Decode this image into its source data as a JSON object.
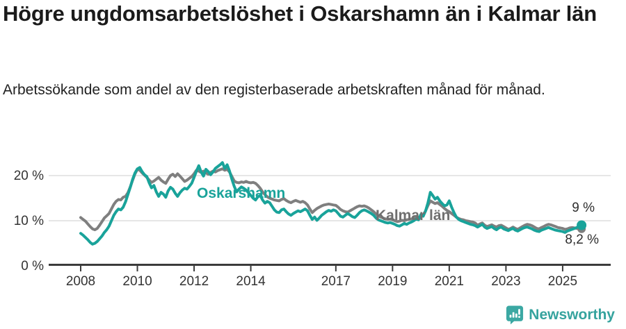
{
  "header": {
    "title": "Högre ungdomsarbetslöshet i Oskarshamn än i Kalmar län",
    "subtitle": "Arbetssökande som andel av den registerbaserade arbetskraften månad för månad."
  },
  "chart_data": {
    "type": "line",
    "unit": "%",
    "x_start_year": 2008,
    "x_step_months": 1,
    "x_end_label": "sep 2025",
    "grid": "horizontal",
    "ylim": [
      0,
      25
    ],
    "y_ticks": [
      {
        "value": 0,
        "label": "0 %"
      },
      {
        "value": 10,
        "label": "10 %"
      },
      {
        "value": 20,
        "label": "20 %"
      }
    ],
    "x_ticks": [
      {
        "year": 2008,
        "label": "2008"
      },
      {
        "year": 2010,
        "label": "2010"
      },
      {
        "year": 2012,
        "label": "2012"
      },
      {
        "year": 2014,
        "label": "2014"
      },
      {
        "year": 2017,
        "label": "2017"
      },
      {
        "year": 2019,
        "label": "2019"
      },
      {
        "year": 2021,
        "label": "2021"
      },
      {
        "year": 2023,
        "label": "2023"
      },
      {
        "year": 2025,
        "label": "2025"
      }
    ],
    "series": [
      {
        "name": "Kalmar län",
        "color": "#7f7f7f",
        "label_color": "#6f6f6f",
        "end_label": "8,2 %",
        "final_value": 8.2,
        "values": [
          10.7,
          10.3,
          9.9,
          9.3,
          8.7,
          8.2,
          8.0,
          8.3,
          9.0,
          9.8,
          10.6,
          11.1,
          11.6,
          12.6,
          13.6,
          14.3,
          14.7,
          14.6,
          15.2,
          15.4,
          16.2,
          17.5,
          19.0,
          20.4,
          21.4,
          21.2,
          20.6,
          20.1,
          19.6,
          19.0,
          18.5,
          18.8,
          19.2,
          19.6,
          19.0,
          18.6,
          18.3,
          19.2,
          20.0,
          20.3,
          19.8,
          20.4,
          19.9,
          19.3,
          18.7,
          19.0,
          19.4,
          19.8,
          20.4,
          21.2,
          21.0,
          20.7,
          21.0,
          20.6,
          20.3,
          20.7,
          21.0,
          20.8,
          21.1,
          21.3,
          21.5,
          21.2,
          21.4,
          20.8,
          19.8,
          18.8,
          18.5,
          18.4,
          18.6,
          18.5,
          18.7,
          18.5,
          18.4,
          18.5,
          18.3,
          17.8,
          17.2,
          16.4,
          15.8,
          15.3,
          15.0,
          14.8,
          14.6,
          14.5,
          14.4,
          14.7,
          14.9,
          14.5,
          14.2,
          14.0,
          14.3,
          14.5,
          14.3,
          14.1,
          14.3,
          14.0,
          13.5,
          12.6,
          11.8,
          12.3,
          12.7,
          13.0,
          13.3,
          13.5,
          13.6,
          13.7,
          13.6,
          13.5,
          13.4,
          13.0,
          12.5,
          12.2,
          12.0,
          11.9,
          12.2,
          12.5,
          12.8,
          13.1,
          13.3,
          13.2,
          13.3,
          13.1,
          12.8,
          12.4,
          12.0,
          11.5,
          11.1,
          10.8,
          10.6,
          10.4,
          10.3,
          10.4,
          10.2,
          10.0,
          9.8,
          9.9,
          10.1,
          10.0,
          10.2,
          10.3,
          10.4,
          10.6,
          10.8,
          10.7,
          10.9,
          11.3,
          12.2,
          13.4,
          14.4,
          14.1,
          13.8,
          14.0,
          13.6,
          13.2,
          12.7,
          12.3,
          12.0,
          11.6,
          11.2,
          10.8,
          10.5,
          10.3,
          10.2,
          10.0,
          9.9,
          9.8,
          9.7,
          9.5,
          9.0,
          9.3,
          9.5,
          9.0,
          8.7,
          8.9,
          9.1,
          8.8,
          8.6,
          8.9,
          9.0,
          8.7,
          8.4,
          8.1,
          8.3,
          8.6,
          8.3,
          8.1,
          8.4,
          8.7,
          9.0,
          9.2,
          9.1,
          8.9,
          8.6,
          8.3,
          8.2,
          8.5,
          8.7,
          9.0,
          9.2,
          9.1,
          8.9,
          8.7,
          8.5,
          8.4,
          8.3,
          8.1,
          8.2,
          8.4,
          8.5,
          8.4,
          8.3,
          8.2,
          8.2
        ]
      },
      {
        "name": "Oskarshamn",
        "color": "#19a39a",
        "label_color": "#19a39a",
        "end_label": "9 %",
        "final_value": 9.0,
        "values": [
          7.2,
          6.8,
          6.3,
          5.8,
          5.2,
          4.8,
          5.0,
          5.4,
          6.0,
          6.6,
          7.4,
          8.0,
          8.8,
          10.0,
          11.2,
          12.0,
          12.6,
          12.4,
          13.0,
          14.2,
          15.8,
          17.4,
          19.2,
          20.6,
          21.5,
          21.8,
          20.9,
          20.2,
          19.8,
          18.4,
          17.3,
          17.8,
          16.4,
          15.4,
          16.3,
          15.9,
          15.2,
          16.6,
          17.4,
          17.0,
          16.1,
          15.4,
          16.2,
          16.8,
          17.2,
          17.0,
          17.6,
          18.3,
          19.6,
          21.0,
          22.2,
          20.8,
          19.9,
          21.4,
          20.9,
          20.2,
          20.8,
          21.6,
          22.0,
          22.4,
          22.9,
          21.6,
          22.4,
          21.0,
          19.2,
          17.6,
          16.4,
          17.0,
          17.5,
          17.2,
          16.8,
          16.2,
          15.6,
          15.0,
          14.6,
          15.3,
          15.6,
          14.6,
          13.9,
          14.3,
          14.0,
          13.2,
          12.4,
          11.9,
          11.8,
          12.4,
          12.6,
          12.0,
          11.5,
          11.2,
          11.6,
          11.9,
          12.2,
          12.0,
          12.3,
          12.6,
          12.2,
          11.2,
          10.3,
          10.8,
          10.1,
          10.6,
          11.2,
          11.6,
          12.0,
          12.3,
          12.1,
          12.4,
          12.2,
          11.6,
          11.0,
          10.8,
          11.2,
          11.6,
          11.3,
          10.9,
          10.7,
          11.2,
          11.8,
          12.2,
          12.4,
          12.2,
          11.9,
          11.6,
          11.2,
          10.6,
          10.2,
          10.0,
          9.8,
          9.6,
          9.5,
          9.6,
          9.4,
          9.2,
          8.9,
          8.8,
          9.1,
          9.4,
          9.2,
          9.5,
          9.7,
          10.0,
          10.4,
          10.2,
          11.4,
          11.0,
          12.2,
          14.0,
          16.3,
          15.6,
          14.8,
          15.2,
          14.4,
          13.8,
          13.3,
          13.5,
          14.4,
          13.0,
          11.8,
          10.8,
          10.3,
          10.0,
          9.8,
          9.6,
          9.4,
          9.2,
          9.1,
          8.9,
          8.6,
          8.9,
          9.2,
          8.6,
          8.3,
          8.5,
          8.7,
          8.3,
          8.0,
          8.4,
          8.6,
          8.2,
          8.0,
          7.8,
          8.1,
          8.3,
          7.9,
          7.7,
          8.0,
          8.3,
          8.5,
          8.6,
          8.4,
          8.2,
          7.9,
          7.7,
          7.6,
          7.9,
          8.1,
          8.3,
          8.5,
          8.3,
          8.1,
          7.9,
          7.8,
          7.7,
          7.6,
          7.4,
          7.7,
          7.9,
          8.1,
          8.3,
          8.5,
          8.8,
          9.0
        ]
      }
    ]
  },
  "colors": {
    "grid": "#d8d8d8",
    "axis": "#3b3b3b",
    "axis_text": "#333333",
    "brand_teal": "#35a39e"
  },
  "footer": {
    "brand": "Newsworthy"
  }
}
